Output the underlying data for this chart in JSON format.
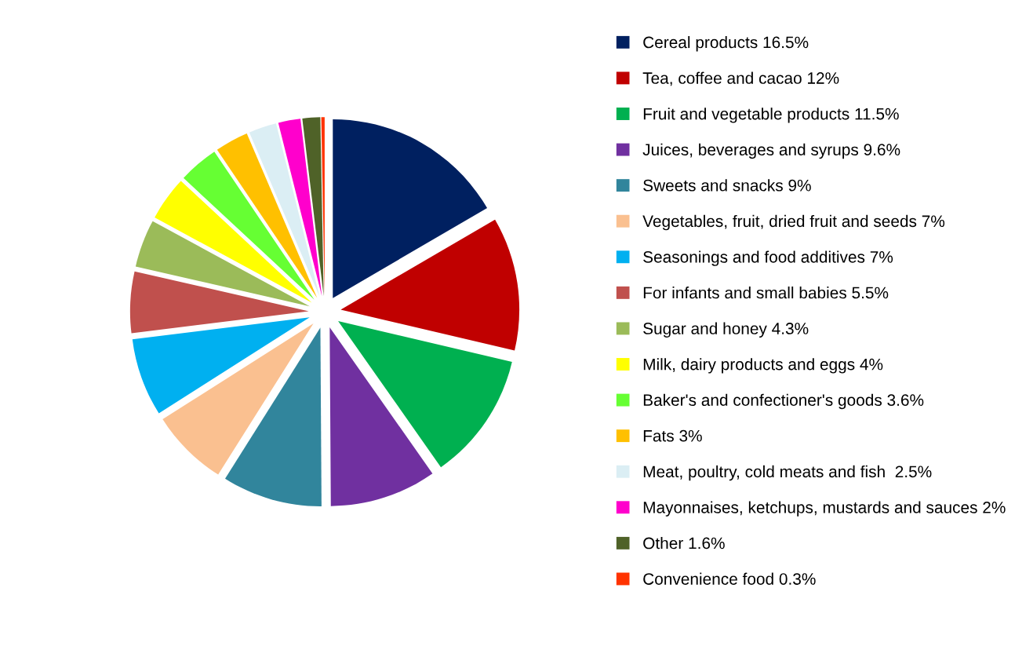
{
  "chart_data": {
    "type": "pie",
    "legend": "right",
    "categories": [
      "Cereal products 16.5%",
      "Tea, coffee and cacao 12%",
      "Fruit and vegetable products 11.5%",
      "Juices, beverages and syrups 9.6%",
      "Sweets and snacks 9%",
      "Vegetables, fruit, dried fruit and seeds 7%",
      "Seasonings and food additives 7%",
      "For infants and small babies 5.5%",
      "Sugar and honey 4.3%",
      "Milk, dairy products and eggs 4%",
      "Baker's and confectioner's goods 3.6%",
      "Fats 3%",
      "Meat, poultry, cold meats and fish  2.5%",
      "Mayonnaises, ketchups, mustards and sauces 2%",
      "Other 1.6%",
      "Convenience food 0.3%"
    ],
    "values": [
      16.5,
      12,
      11.5,
      9.6,
      9,
      7,
      7,
      5.5,
      4.3,
      4,
      3.6,
      3,
      2.5,
      2,
      1.6,
      0.3
    ],
    "colors": [
      "#002060",
      "#c00000",
      "#00b050",
      "#7030a0",
      "#31859c",
      "#fac090",
      "#00b0f0",
      "#c0504d",
      "#9bbb59",
      "#ffff00",
      "#66ff33",
      "#ffc000",
      "#dbeef4",
      "#ff00cc",
      "#4f6228",
      "#ff3300"
    ]
  }
}
